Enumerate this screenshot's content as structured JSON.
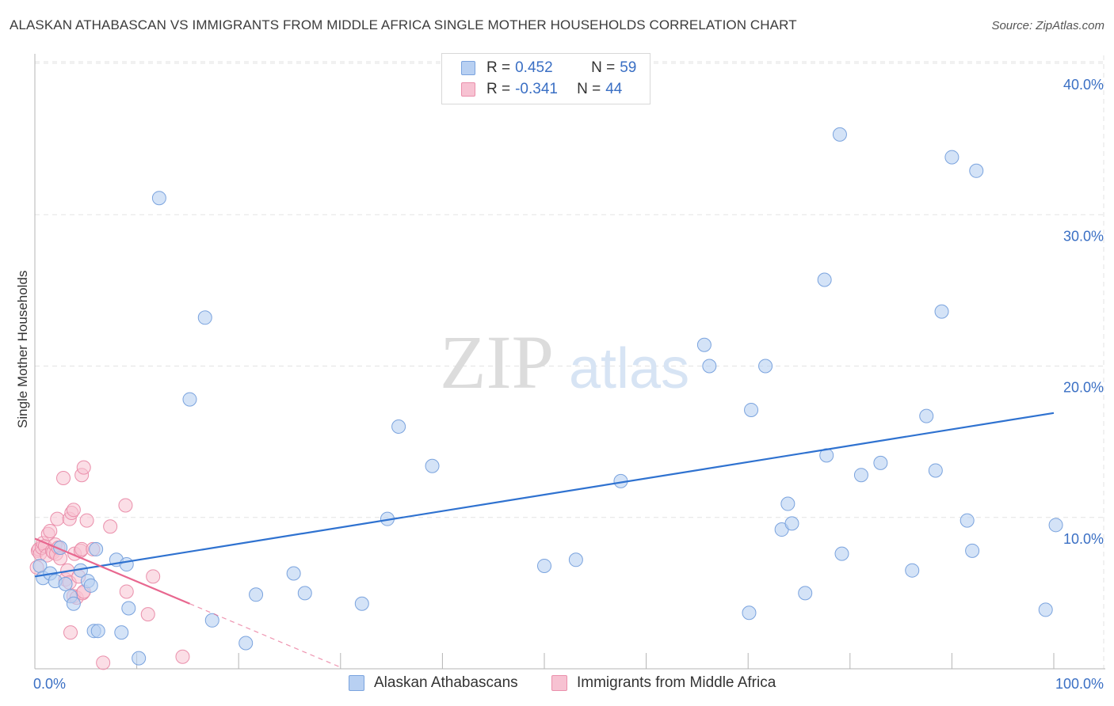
{
  "header": {
    "title": "ALASKAN ATHABASCAN VS IMMIGRANTS FROM MIDDLE AFRICA SINGLE MOTHER HOUSEHOLDS CORRELATION CHART",
    "source": "Source: ZipAtlas.com"
  },
  "watermark": {
    "zip": "ZIP",
    "atlas": "atlas"
  },
  "legend": {
    "series1": {
      "r_label": "R = ",
      "r_value": "0.452",
      "n_label": "N = ",
      "n_value": "59"
    },
    "series2": {
      "r_label": "R = ",
      "r_value": "-0.341",
      "n_label": "N = ",
      "n_value": "44"
    }
  },
  "bottom_legend": {
    "series1": "Alaskan Athabascans",
    "series2": "Immigrants from Middle Africa"
  },
  "colors": {
    "blue_fill": "#b8d0f2",
    "blue_stroke": "#7aa3de",
    "blue_line": "#2f72d0",
    "pink_fill": "#f7c2d2",
    "pink_stroke": "#ea8fab",
    "pink_line": "#e8678f",
    "grid": "#e3e3e3",
    "axis_text": "#3a6fc4"
  },
  "chart_data": {
    "type": "scatter",
    "title": "ALASKAN ATHABASCAN VS IMMIGRANTS FROM MIDDLE AFRICA SINGLE MOTHER HOUSEHOLDS CORRELATION CHART",
    "xlabel": "",
    "ylabel": "Single Mother Households",
    "xlim": [
      0,
      100
    ],
    "ylim": [
      0,
      40
    ],
    "x_tick_labels": [
      {
        "value": 0,
        "label": "0.0%"
      },
      {
        "value": 100,
        "label": "100.0%"
      }
    ],
    "y_tick_labels": [
      {
        "value": 10,
        "label": "10.0%"
      },
      {
        "value": 20,
        "label": "20.0%"
      },
      {
        "value": 30,
        "label": "30.0%"
      },
      {
        "value": 40,
        "label": "40.0%"
      }
    ],
    "grid": true,
    "series": [
      {
        "name": "Alaskan Athabascans",
        "R": 0.452,
        "N": 59,
        "trendline": {
          "x": [
            0,
            100
          ],
          "y": [
            6.1,
            16.9
          ]
        },
        "points": [
          [
            0.5,
            6.8
          ],
          [
            0.8,
            6.0
          ],
          [
            1.5,
            6.3
          ],
          [
            2.0,
            5.8
          ],
          [
            2.5,
            8.0
          ],
          [
            3.0,
            5.6
          ],
          [
            3.5,
            4.8
          ],
          [
            3.8,
            4.3
          ],
          [
            4.5,
            6.5
          ],
          [
            5.2,
            5.8
          ],
          [
            5.5,
            5.5
          ],
          [
            6.0,
            7.9
          ],
          [
            5.8,
            2.5
          ],
          [
            6.2,
            2.5
          ],
          [
            8.0,
            7.2
          ],
          [
            8.5,
            2.4
          ],
          [
            9.0,
            6.9
          ],
          [
            9.2,
            4.0
          ],
          [
            10.2,
            0.7
          ],
          [
            12.2,
            31.1
          ],
          [
            15.2,
            17.8
          ],
          [
            16.7,
            23.2
          ],
          [
            17.4,
            3.2
          ],
          [
            20.7,
            1.7
          ],
          [
            21.7,
            4.9
          ],
          [
            25.4,
            6.3
          ],
          [
            26.5,
            5.0
          ],
          [
            32.1,
            4.3
          ],
          [
            34.6,
            9.9
          ],
          [
            35.7,
            16.0
          ],
          [
            39.0,
            13.4
          ],
          [
            50.0,
            6.8
          ],
          [
            53.1,
            7.2
          ],
          [
            57.5,
            12.4
          ],
          [
            65.7,
            21.4
          ],
          [
            66.2,
            20.0
          ],
          [
            70.1,
            3.7
          ],
          [
            70.3,
            17.1
          ],
          [
            71.7,
            20.0
          ],
          [
            73.3,
            9.2
          ],
          [
            73.9,
            10.9
          ],
          [
            74.3,
            9.6
          ],
          [
            75.6,
            5.0
          ],
          [
            77.5,
            25.7
          ],
          [
            77.7,
            14.1
          ],
          [
            79.0,
            35.3
          ],
          [
            79.2,
            7.6
          ],
          [
            81.1,
            12.8
          ],
          [
            83.0,
            13.6
          ],
          [
            86.1,
            6.5
          ],
          [
            87.5,
            16.7
          ],
          [
            88.4,
            13.1
          ],
          [
            89.0,
            23.6
          ],
          [
            90.0,
            33.8
          ],
          [
            91.5,
            9.8
          ],
          [
            92.0,
            7.8
          ],
          [
            92.4,
            32.9
          ],
          [
            99.2,
            3.9
          ],
          [
            100.2,
            9.5
          ]
        ]
      },
      {
        "name": "Immigrants from Middle Africa",
        "R": -0.341,
        "N": 44,
        "trendline": {
          "x": [
            0,
            15.2
          ],
          "y": [
            8.6,
            4.3
          ]
        },
        "trendline_extension": {
          "x": [
            15.2,
            30.0
          ],
          "y": [
            4.3,
            0.1
          ]
        },
        "points": [
          [
            0.2,
            6.7
          ],
          [
            0.3,
            7.8
          ],
          [
            0.4,
            7.9
          ],
          [
            0.5,
            7.6
          ],
          [
            0.7,
            8.0
          ],
          [
            0.8,
            8.3
          ],
          [
            1.0,
            8.1
          ],
          [
            1.2,
            7.5
          ],
          [
            1.3,
            8.9
          ],
          [
            1.5,
            9.1
          ],
          [
            1.7,
            7.8
          ],
          [
            1.8,
            7.7
          ],
          [
            2.0,
            8.2
          ],
          [
            2.1,
            7.6
          ],
          [
            2.3,
            8.0
          ],
          [
            2.5,
            7.3
          ],
          [
            2.2,
            9.9
          ],
          [
            2.8,
            12.6
          ],
          [
            3.0,
            5.9
          ],
          [
            3.2,
            6.5
          ],
          [
            3.4,
            9.9
          ],
          [
            3.4,
            5.7
          ],
          [
            3.5,
            2.4
          ],
          [
            3.6,
            10.3
          ],
          [
            3.8,
            10.5
          ],
          [
            3.8,
            4.8
          ],
          [
            3.9,
            7.6
          ],
          [
            4.1,
            4.7
          ],
          [
            4.3,
            6.1
          ],
          [
            4.5,
            7.8
          ],
          [
            4.6,
            7.9
          ],
          [
            4.7,
            5.0
          ],
          [
            4.8,
            5.1
          ],
          [
            4.6,
            12.8
          ],
          [
            4.8,
            13.3
          ],
          [
            5.1,
            9.8
          ],
          [
            5.7,
            7.9
          ],
          [
            6.7,
            0.4
          ],
          [
            7.4,
            9.4
          ],
          [
            8.9,
            10.8
          ],
          [
            9.0,
            5.1
          ],
          [
            11.1,
            3.6
          ],
          [
            11.6,
            6.1
          ],
          [
            14.5,
            0.8
          ]
        ]
      }
    ]
  }
}
